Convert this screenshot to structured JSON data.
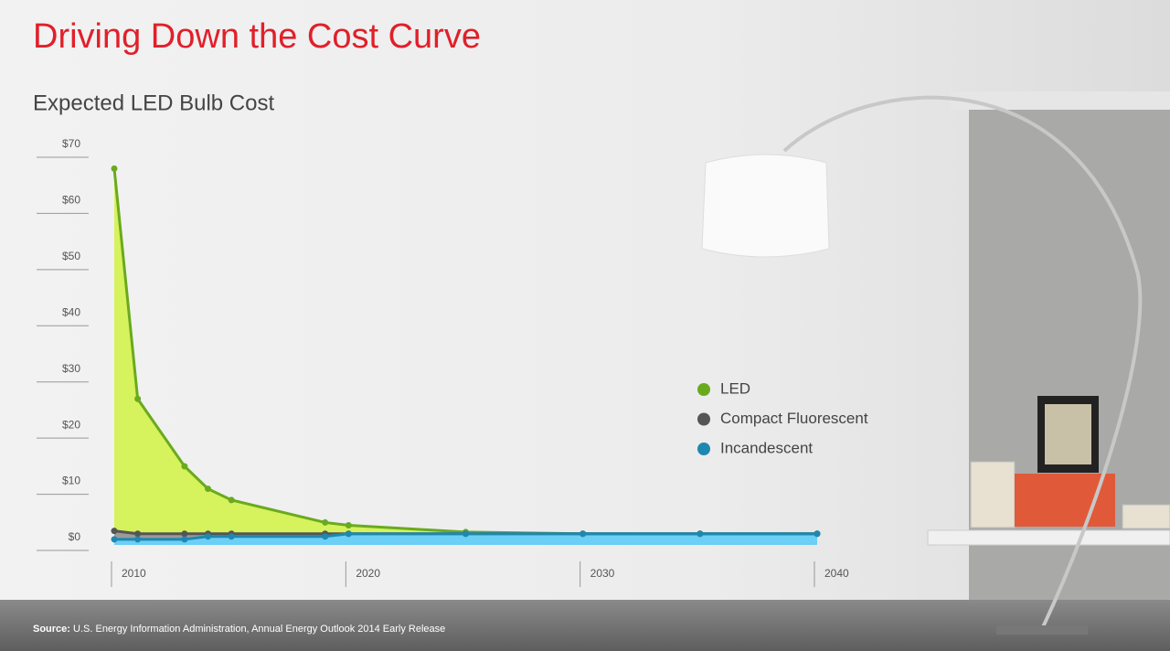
{
  "chart_data": {
    "type": "line",
    "title": "Driving Down the Cost Curve",
    "subtitle": "Expected LED Bulb Cost",
    "x": [
      2010,
      2011,
      2013,
      2014,
      2015,
      2019,
      2020,
      2025,
      2030,
      2035,
      2040
    ],
    "series": [
      {
        "name": "LED",
        "color": "#6aaa1e",
        "fill": "#d6f25c",
        "values": [
          67,
          26,
          14,
          10,
          8,
          4,
          3.5,
          2.3,
          2,
          2,
          2
        ]
      },
      {
        "name": "Compact Fluorescent",
        "color": "#555555",
        "fill": "#9a9a9a",
        "values": [
          2.5,
          2,
          2,
          2,
          2,
          2,
          2,
          2,
          2,
          2,
          2
        ]
      },
      {
        "name": "Incandescent",
        "color": "#1e88b0",
        "fill": "#6ccff5",
        "values": [
          1,
          1,
          1,
          1.5,
          1.5,
          1.5,
          2,
          2,
          2,
          2,
          2
        ]
      }
    ],
    "xlim": [
      2010,
      2040
    ],
    "xticks": [
      2010,
      2020,
      2030,
      2040
    ],
    "ylim": [
      0,
      70
    ],
    "yticks": [
      {
        "value": 0,
        "label": "$0"
      },
      {
        "value": 10,
        "label": "$10"
      },
      {
        "value": 20,
        "label": "$20"
      },
      {
        "value": 30,
        "label": "$30"
      },
      {
        "value": 40,
        "label": "$40"
      },
      {
        "value": 50,
        "label": "$50"
      },
      {
        "value": 60,
        "label": "$60"
      },
      {
        "value": 70,
        "label": "$70"
      }
    ],
    "source": {
      "label": "Source:",
      "text": "U.S. Energy Information Administration, Annual Energy Outlook 2014 Early Release"
    }
  }
}
